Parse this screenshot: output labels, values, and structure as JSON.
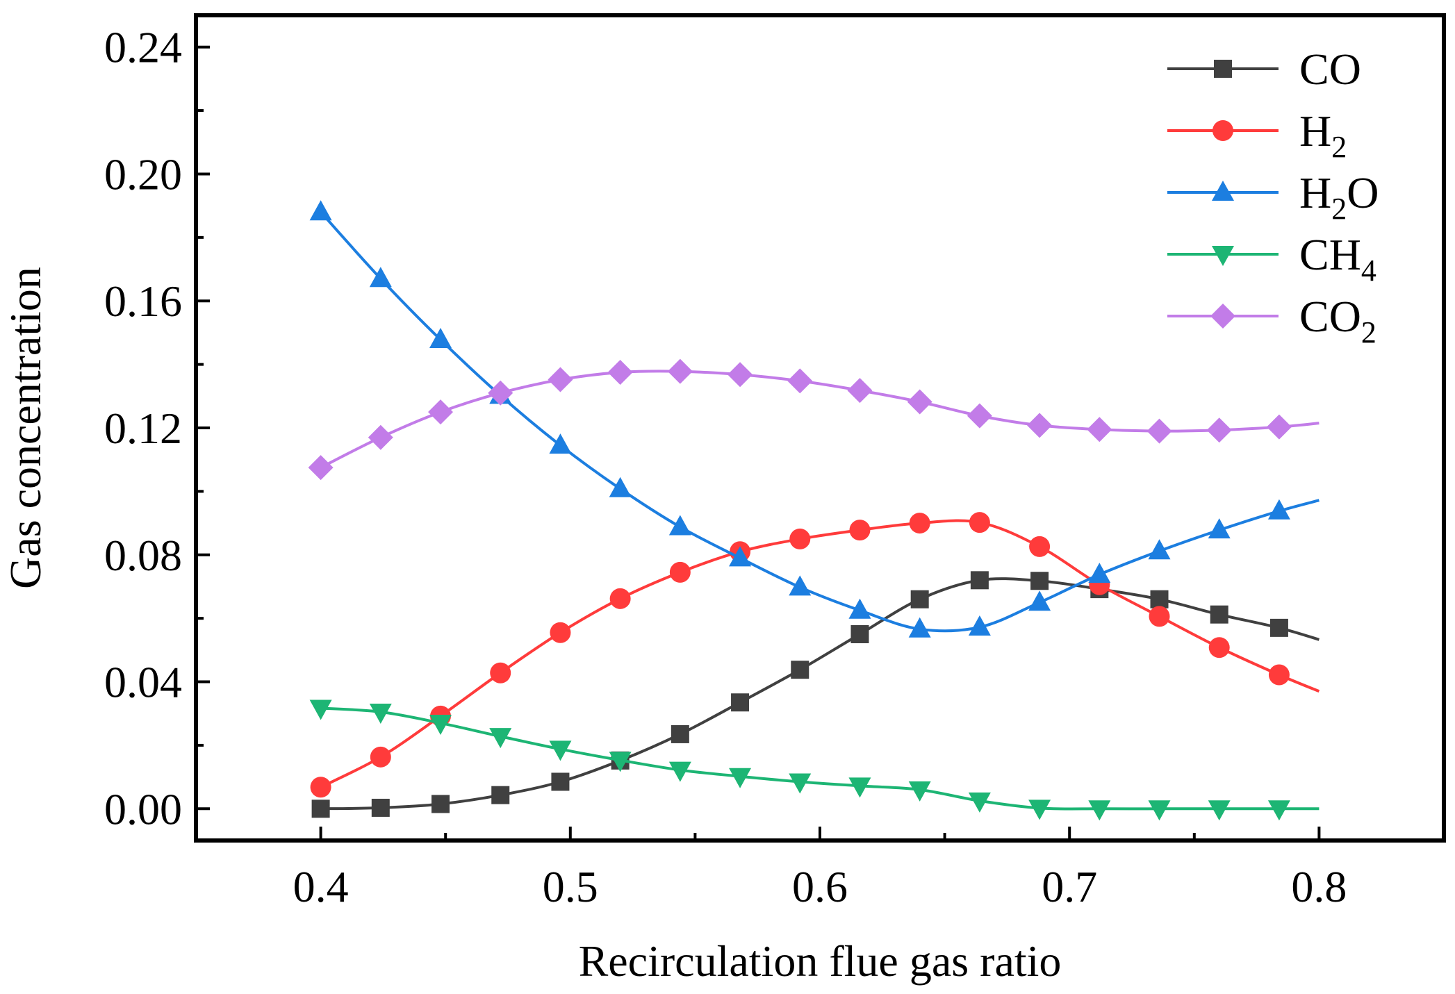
{
  "chart_data": {
    "type": "line",
    "title": "",
    "xlabel": "Recirculation flue gas ratio",
    "ylabel": "Gas concentration",
    "xlim": [
      0.35,
      0.85
    ],
    "ylim": [
      -0.01,
      0.25
    ],
    "x_ticks": [
      0.4,
      0.5,
      0.6,
      0.7,
      0.8
    ],
    "x_tick_labels": [
      "0.4",
      "0.5",
      "0.6",
      "0.7",
      "0.8"
    ],
    "y_ticks": [
      0.0,
      0.04,
      0.08,
      0.12,
      0.16,
      0.2,
      0.24
    ],
    "y_tick_labels": [
      "0.00",
      "0.04",
      "0.08",
      "0.12",
      "0.16",
      "0.20",
      "0.24"
    ],
    "grid": false,
    "legend_position": "top-right",
    "x": [
      0.4,
      0.424,
      0.448,
      0.472,
      0.496,
      0.52,
      0.544,
      0.568,
      0.592,
      0.616,
      0.64,
      0.664,
      0.688,
      0.712,
      0.736,
      0.76,
      0.784
    ],
    "series": [
      {
        "name": "CO",
        "label_main": "CO",
        "label_sub": "",
        "label_after": "",
        "color": "#404040",
        "marker": "square",
        "values": [
          0.0,
          0.0003,
          0.0015,
          0.0043,
          0.0085,
          0.0152,
          0.0235,
          0.0335,
          0.0438,
          0.055,
          0.066,
          0.072,
          0.0718,
          0.0692,
          0.066,
          0.0612,
          0.057
        ],
        "curve_end": [
          0.8,
          0.0533
        ]
      },
      {
        "name": "H2",
        "label_main": "H",
        "label_sub": "2",
        "label_after": "",
        "color": "#ff3b3b",
        "marker": "circle",
        "values": [
          0.0068,
          0.0163,
          0.0292,
          0.0428,
          0.0555,
          0.0662,
          0.0745,
          0.081,
          0.085,
          0.0878,
          0.09,
          0.0902,
          0.0826,
          0.0706,
          0.0606,
          0.0508,
          0.0422
        ],
        "curve_end": [
          0.8,
          0.037
        ]
      },
      {
        "name": "H2O",
        "label_main": "H",
        "label_sub": "2",
        "label_after": "O",
        "color": "#1c7ee0",
        "marker": "triangle-up",
        "values": [
          0.188,
          0.167,
          0.1478,
          0.1302,
          0.1145,
          0.1008,
          0.0888,
          0.079,
          0.0698,
          0.0625,
          0.0566,
          0.0572,
          0.065,
          0.0738,
          0.0812,
          0.0878,
          0.0938
        ],
        "curve_end": [
          0.8,
          0.0972
        ]
      },
      {
        "name": "CH4",
        "label_main": "CH",
        "label_sub": "4",
        "label_after": "",
        "color": "#1db574",
        "marker": "triangle-down",
        "values": [
          0.0317,
          0.0305,
          0.027,
          0.0228,
          0.0188,
          0.0153,
          0.0122,
          0.0102,
          0.0085,
          0.0072,
          0.006,
          0.0025,
          0.0002,
          0.0,
          0.0,
          0.0,
          0.0
        ],
        "curve_end": [
          0.8,
          0.0
        ]
      },
      {
        "name": "CO2",
        "label_main": "CO",
        "label_sub": "2",
        "label_after": "",
        "color": "#c27ce8",
        "marker": "diamond",
        "values": [
          0.1075,
          0.117,
          0.125,
          0.131,
          0.1352,
          0.1375,
          0.1378,
          0.1368,
          0.1348,
          0.1318,
          0.1282,
          0.1238,
          0.1208,
          0.1195,
          0.119,
          0.1193,
          0.1203
        ],
        "curve_end": [
          0.8,
          0.1215
        ]
      }
    ]
  }
}
